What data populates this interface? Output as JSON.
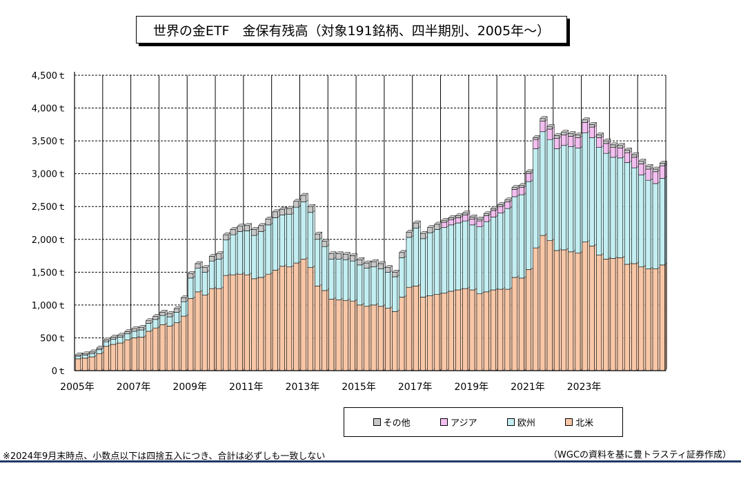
{
  "title": "世界の金ETF　金保有残高（対象191銘柄、四半期別、2005年～）",
  "footnote": "※2024年9月末時点、小数点以下は四捨五入につき、合計は必ずしも一致しない",
  "source": "（WGCの資料を基に豊トラスティ証券作成）",
  "colors": {
    "north_america": "#f8c7a7",
    "europe": "#c4eff2",
    "asia": "#f3bff0",
    "other": "#c8c8c8",
    "stroke": "#000000"
  },
  "chart_data": {
    "type": "bar",
    "stacked": true,
    "ylim": [
      0,
      4500
    ],
    "y_ticks": [
      "0ｔ",
      "500ｔ",
      "1,000ｔ",
      "1,500ｔ",
      "2,000ｔ",
      "2,500ｔ",
      "3,000ｔ",
      "3,500ｔ",
      "4,000ｔ",
      "4,500ｔ"
    ],
    "x_tick_labels": [
      "2005年",
      "2007年",
      "2009年",
      "2011年",
      "2013年",
      "2015年",
      "2017年",
      "2019年",
      "2021年",
      "2023年"
    ],
    "grid": true,
    "legend_position": "bottom",
    "series": [
      {
        "name": "北米",
        "values": [
          180,
          190,
          210,
          260,
          370,
          400,
          420,
          470,
          500,
          510,
          600,
          650,
          700,
          680,
          730,
          830,
          1100,
          1200,
          1150,
          1250,
          1250,
          1450,
          1460,
          1470,
          1460,
          1400,
          1420,
          1470,
          1530,
          1590,
          1580,
          1640,
          1700,
          1570,
          1290,
          1220,
          1090,
          1080,
          1070,
          1060,
          1000,
          980,
          1000,
          980,
          950,
          900,
          1120,
          1270,
          1290,
          1120,
          1140,
          1160,
          1180,
          1210,
          1230,
          1250,
          1230,
          1170,
          1200,
          1230,
          1240,
          1240,
          1420,
          1410,
          1540,
          1870,
          2060,
          1980,
          1830,
          1840,
          1810,
          1790,
          1960,
          1900,
          1760,
          1700,
          1710,
          1720,
          1620,
          1630,
          1580,
          1550,
          1550,
          1610
        ]
      },
      {
        "name": "欧州",
        "values": [
          40,
          45,
          50,
          60,
          70,
          80,
          90,
          90,
          100,
          110,
          120,
          130,
          140,
          140,
          160,
          220,
          310,
          360,
          350,
          420,
          450,
          540,
          610,
          650,
          670,
          660,
          700,
          750,
          800,
          780,
          800,
          850,
          870,
          840,
          710,
          670,
          610,
          620,
          620,
          610,
          610,
          580,
          580,
          570,
          550,
          530,
          600,
          760,
          880,
          890,
          960,
          990,
          1000,
          1010,
          1020,
          1030,
          990,
          1020,
          1070,
          1110,
          1160,
          1230,
          1230,
          1270,
          1340,
          1510,
          1580,
          1540,
          1550,
          1590,
          1600,
          1600,
          1660,
          1650,
          1640,
          1610,
          1540,
          1520,
          1550,
          1460,
          1400,
          1350,
          1300,
          1320
        ]
      },
      {
        "name": "アジア",
        "values": [
          0,
          0,
          0,
          0,
          0,
          0,
          0,
          0,
          0,
          0,
          0,
          0,
          0,
          0,
          0,
          0,
          0,
          0,
          0,
          0,
          0,
          0,
          0,
          0,
          0,
          0,
          0,
          0,
          0,
          0,
          0,
          0,
          0,
          0,
          0,
          0,
          0,
          0,
          0,
          0,
          0,
          0,
          0,
          0,
          0,
          0,
          0,
          0,
          0,
          0,
          0,
          0,
          80,
          80,
          80,
          90,
          90,
          90,
          90,
          100,
          100,
          100,
          110,
          110,
          120,
          140,
          160,
          160,
          160,
          160,
          160,
          160,
          160,
          160,
          150,
          150,
          150,
          150,
          150,
          160,
          170,
          170,
          180,
          190
        ]
      },
      {
        "name": "その他",
        "values": [
          20,
          20,
          25,
          25,
          30,
          30,
          30,
          35,
          40,
          40,
          40,
          45,
          50,
          50,
          55,
          60,
          70,
          70,
          70,
          70,
          80,
          80,
          80,
          80,
          80,
          90,
          90,
          90,
          90,
          90,
          90,
          90,
          100,
          90,
          80,
          80,
          80,
          80,
          80,
          80,
          80,
          80,
          80,
          80,
          70,
          70,
          80,
          80,
          80,
          80,
          80,
          80,
          30,
          30,
          30,
          30,
          30,
          30,
          30,
          30,
          30,
          30,
          30,
          30,
          30,
          30,
          40,
          40,
          40,
          40,
          40,
          40,
          40,
          40,
          40,
          40,
          40,
          40,
          40,
          40,
          40,
          40,
          40,
          40
        ]
      }
    ]
  },
  "legend": [
    {
      "name": "その他",
      "color_key": "other"
    },
    {
      "name": "アジア",
      "color_key": "asia"
    },
    {
      "name": "欧州",
      "color_key": "europe"
    },
    {
      "name": "北米",
      "color_key": "north_america"
    }
  ]
}
